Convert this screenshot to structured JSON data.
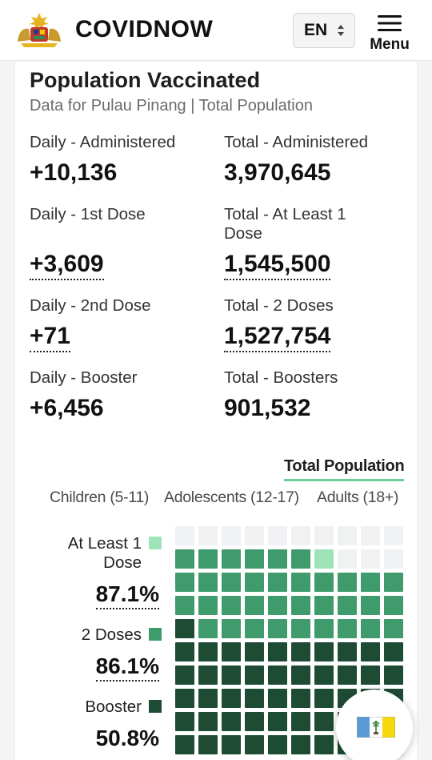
{
  "header": {
    "brand": "COVIDNOW",
    "language": "EN",
    "menu_label": "Menu"
  },
  "card": {
    "title": "Population Vaccinated",
    "subtitle": "Data for Pulau Pinang | Total Population"
  },
  "stats": {
    "daily_administered": {
      "label": "Daily - Administered",
      "value": "+10,136"
    },
    "total_administered": {
      "label": "Total - Administered",
      "value": "3,970,645"
    },
    "daily_first": {
      "label": "Daily - 1st Dose",
      "value": "+3,609"
    },
    "total_first_line1": "Total - At Least 1",
    "total_first_line2": "Dose",
    "total_first_value": "1,545,500",
    "daily_second": {
      "label": "Daily - 2nd Dose",
      "value": "+71"
    },
    "total_second": {
      "label": "Total - 2 Doses",
      "value": "1,527,754"
    },
    "daily_booster": {
      "label": "Daily - Booster",
      "value": "+6,456"
    },
    "total_booster": {
      "label": "Total - Boosters",
      "value": "901,532"
    }
  },
  "tabs": {
    "active": "Total Population",
    "categories": [
      "Children (5-11)",
      "Adolescents (12-17)",
      "Adults (18+)"
    ]
  },
  "legend": {
    "first_line1": "At Least 1",
    "first_line2": "Dose",
    "first_pct": "87.1%",
    "second_label": "2 Doses",
    "second_pct": "86.1%",
    "booster_label": "Booster",
    "booster_pct": "50.8%"
  },
  "waffle": {
    "at_least_one_pct": 87.1,
    "two_doses_pct": 86.1,
    "booster_pct": 50.8
  },
  "colors": {
    "at_least_one": "#9fe3b8",
    "two_doses": "#3f9b6c",
    "booster": "#1d4b33",
    "empty": "#f0f1f3",
    "accent": "#6fcf97"
  },
  "icons": {
    "logo": "malaysia-coat-of-arms-icon",
    "menu": "hamburger-menu-icon",
    "language": "up-down-chevron-icon",
    "flag": "penang-flag-icon"
  }
}
